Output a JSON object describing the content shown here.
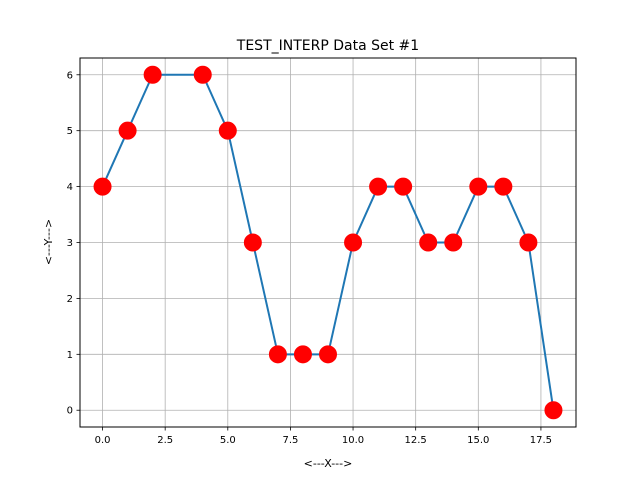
{
  "chart_data": {
    "type": "line",
    "title": "TEST_INTERP Data Set #1",
    "xlabel": "<---X--->",
    "ylabel": "<---Y--->",
    "xlim": [
      -0.9,
      18.9
    ],
    "ylim": [
      -0.3,
      6.3
    ],
    "xticks": [
      0.0,
      2.5,
      5.0,
      7.5,
      10.0,
      12.5,
      15.0,
      17.5
    ],
    "xtick_labels": [
      "0.0",
      "2.5",
      "5.0",
      "7.5",
      "10.0",
      "12.5",
      "15.0",
      "17.5"
    ],
    "yticks": [
      0,
      1,
      2,
      3,
      4,
      5,
      6
    ],
    "ytick_labels": [
      "0",
      "1",
      "2",
      "3",
      "4",
      "5",
      "6"
    ],
    "grid": true,
    "series": [
      {
        "x": [
          0,
          1,
          2,
          4,
          5,
          6,
          7,
          8,
          9,
          10,
          11,
          12,
          13,
          14,
          15,
          16,
          17,
          18
        ],
        "y": [
          4,
          5,
          6,
          6,
          5,
          3,
          1,
          1,
          1,
          3,
          4,
          4,
          3,
          3,
          4,
          4,
          3,
          0
        ],
        "line_color": "#1f77b4",
        "marker_color": "#ff0000"
      }
    ]
  }
}
